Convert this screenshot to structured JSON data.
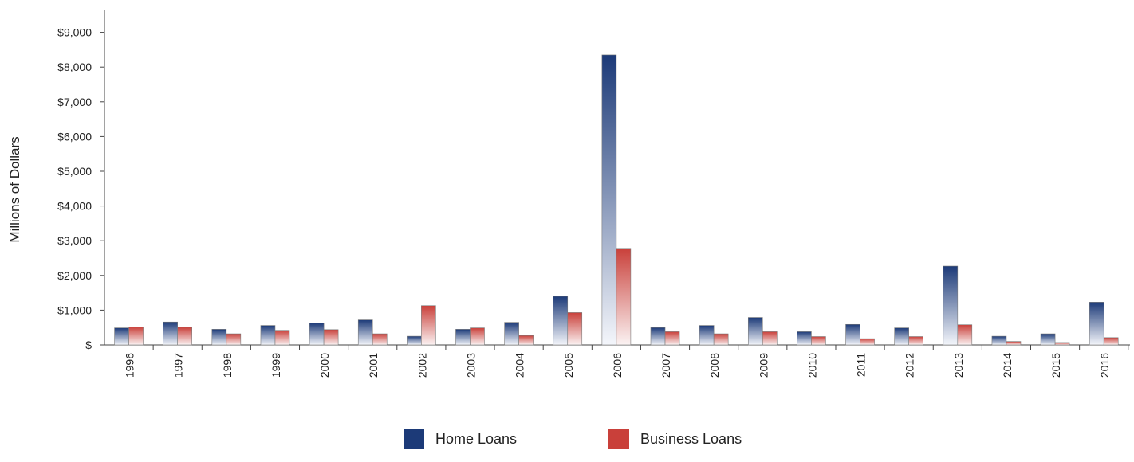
{
  "colors": {
    "home_top": "#1c3a78",
    "home_bottom": "#f4f6fb",
    "business_top": "#c9403a",
    "business_bottom": "#fbf3f3",
    "axis": "#444444"
  },
  "chart_data": {
    "type": "bar",
    "xlabel": "",
    "ylabel": "Millions of Dollars",
    "ylim": [
      0,
      9500
    ],
    "yticks": [
      0,
      1000,
      2000,
      3000,
      4000,
      5000,
      6000,
      7000,
      8000,
      9000
    ],
    "ytick_labels": [
      "$",
      "$1,000",
      "$2,000",
      "$3,000",
      "$4,000",
      "$5,000",
      "$6,000",
      "$7,000",
      "$8,000",
      "$9,000"
    ],
    "grid": false,
    "legend_position": "bottom",
    "categories": [
      "1996",
      "1997",
      "1998",
      "1999",
      "2000",
      "2001",
      "2002",
      "2003",
      "2004",
      "2005",
      "2006",
      "2007",
      "2008",
      "2009",
      "2010",
      "2011",
      "2012",
      "2013",
      "2014",
      "2015",
      "2016"
    ],
    "series": [
      {
        "name": "Home Loans",
        "color": "#1c3a78",
        "values": [
          490,
          660,
          450,
          560,
          630,
          720,
          250,
          450,
          650,
          1400,
          8350,
          500,
          560,
          790,
          380,
          590,
          490,
          2270,
          250,
          320,
          1230
        ]
      },
      {
        "name": "Business Loans",
        "color": "#c9403a",
        "values": [
          520,
          510,
          320,
          420,
          440,
          320,
          1130,
          490,
          270,
          930,
          2780,
          380,
          320,
          380,
          240,
          180,
          240,
          580,
          100,
          70,
          210
        ]
      }
    ]
  }
}
